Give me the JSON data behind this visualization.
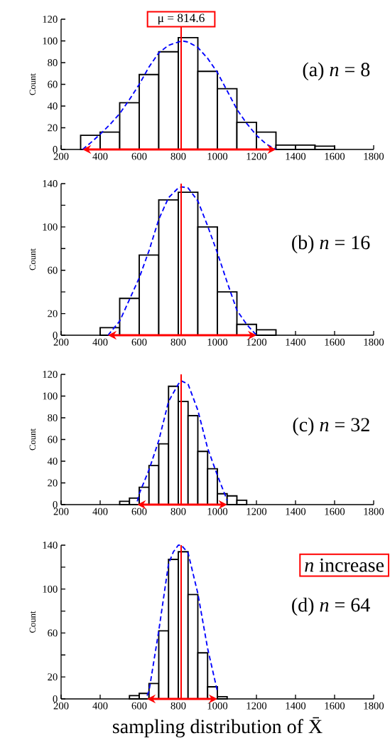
{
  "chart_data": [
    {
      "type": "histogram",
      "ylabel": "Count",
      "xlim": [
        200,
        1800
      ],
      "xticks": [
        200,
        400,
        600,
        800,
        1000,
        1200,
        1400,
        1600,
        1800
      ],
      "ylim": [
        0,
        120
      ],
      "yticks": [
        0,
        20,
        40,
        60,
        80,
        100,
        120
      ],
      "bins": [
        300,
        400,
        500,
        600,
        700,
        800,
        900,
        1000,
        1100,
        1200,
        1300,
        1400,
        1500,
        1600
      ],
      "values": [
        13,
        16,
        43,
        69,
        90,
        103,
        72,
        56,
        25,
        16,
        4,
        4,
        3
      ],
      "series": [
        {
          "type": "line",
          "color": "#0000ff",
          "line_style": "dashed",
          "x": [
            310,
            350,
            400,
            450,
            500,
            550,
            600,
            650,
            700,
            750,
            800,
            820,
            850,
            900,
            950,
            1000,
            1050,
            1100,
            1150,
            1200,
            1250,
            1300
          ],
          "values": [
            0,
            6,
            14,
            23,
            33,
            46,
            60,
            76,
            89,
            96,
            99,
            100,
            99,
            94,
            84,
            71,
            54,
            37,
            24,
            13,
            5,
            0
          ]
        }
      ],
      "ref_lines": [
        {
          "axis": "x",
          "value": 814.6,
          "label": "μ = 814.6",
          "color": "#ff0000"
        }
      ],
      "annotations": [
        "(a) *n* = 8"
      ]
    },
    {
      "type": "histogram",
      "ylabel": "Count",
      "xlim": [
        200,
        1800
      ],
      "xticks": [
        200,
        400,
        600,
        800,
        1000,
        1200,
        1400,
        1600,
        1800
      ],
      "ylim": [
        0,
        140
      ],
      "yticks": [
        0,
        20,
        {
          "value": 40,
          "label": null
        },
        60,
        {
          "value": 80,
          "label": null
        },
        100,
        {
          "value": 120,
          "label": null
        },
        140
      ],
      "bins": [
        400,
        500,
        600,
        700,
        800,
        900,
        1000,
        1100,
        1200,
        1300
      ],
      "values": [
        7,
        34,
        74,
        125,
        132,
        100,
        40,
        10,
        5
      ],
      "series": [
        {
          "type": "line",
          "color": "#0000ff",
          "line_style": "dashed",
          "x": [
            440,
            500,
            550,
            600,
            650,
            700,
            750,
            800,
            820,
            850,
            900,
            950,
            1000,
            1050,
            1100,
            1150,
            1200
          ],
          "values": [
            0,
            13,
            33,
            53,
            78,
            107,
            127,
            136,
            137,
            136,
            124,
            101,
            76,
            49,
            23,
            10,
            0
          ]
        }
      ],
      "ref_lines": [
        {
          "axis": "x",
          "value": 814.6,
          "color": "#ff0000"
        }
      ],
      "annotations": [
        "(b) *n* = 16"
      ]
    },
    {
      "type": "histogram",
      "ylabel": "Count",
      "xlim": [
        200,
        1800
      ],
      "xticks": [
        200,
        400,
        600,
        800,
        1000,
        1200,
        1400,
        1600,
        1800
      ],
      "ylim": [
        0,
        120
      ],
      "yticks": [
        0,
        20,
        40,
        60,
        80,
        100,
        120
      ],
      "bins": [
        500,
        550,
        600,
        650,
        700,
        750,
        800,
        850,
        900,
        950,
        1000,
        1050,
        1100,
        1150
      ],
      "values": [
        3,
        6,
        16,
        36,
        56,
        109,
        95,
        82,
        49,
        33,
        10,
        8,
        4
      ],
      "series": [
        {
          "type": "line",
          "color": "#0000ff",
          "line_style": "dashed",
          "x": [
            590,
            600,
            650,
            700,
            750,
            800,
            815,
            850,
            900,
            950,
            1000,
            1050
          ],
          "values": [
            3,
            10,
            32,
            59,
            95,
            111,
            114,
            111,
            87,
            52,
            27,
            4
          ]
        }
      ],
      "ref_lines": [
        {
          "axis": "x",
          "value": 814.6,
          "color": "#ff0000"
        }
      ],
      "annotations": [
        "(c) *n* = 32"
      ]
    },
    {
      "type": "histogram",
      "ylabel": "Count",
      "xlabel": "sampling distribution of X̄",
      "xlim": [
        200,
        1800
      ],
      "xticks": [
        200,
        400,
        600,
        800,
        1000,
        1200,
        1400,
        1600,
        1800
      ],
      "ylim": [
        0,
        140
      ],
      "yticks": [
        0,
        20,
        {
          "value": 40,
          "label": null
        },
        60,
        {
          "value": 80,
          "label": null
        },
        100,
        {
          "value": 120,
          "label": null
        },
        140
      ],
      "bins": [
        550,
        600,
        650,
        700,
        750,
        800,
        850,
        900,
        950,
        1000,
        1050
      ],
      "values": [
        3,
        5,
        14,
        62,
        127,
        134,
        95,
        42,
        11,
        2
      ],
      "series": [
        {
          "type": "line",
          "color": "#0000ff",
          "line_style": "dashed",
          "x": [
            640,
            650,
            700,
            750,
            775,
            800,
            815,
            850,
            900,
            950,
            1000
          ],
          "values": [
            3,
            7,
            62,
            123,
            134,
            140,
            140,
            133,
            96,
            46,
            7
          ]
        }
      ],
      "ref_lines": [
        {
          "axis": "x",
          "value": 814.6,
          "color": "#ff0000"
        }
      ],
      "annotations": [
        "(d) *n* = 64",
        "*n* increase"
      ]
    }
  ]
}
